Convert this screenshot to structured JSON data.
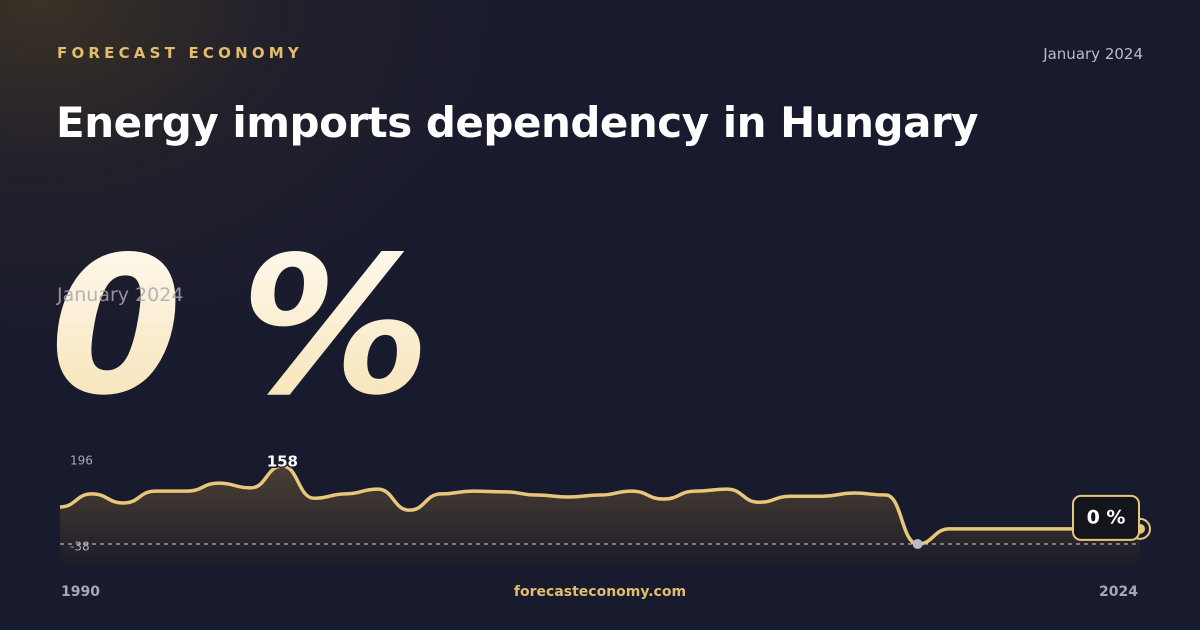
{
  "brand": "FORECAST ECONOMY",
  "date": "January 2024",
  "site": "forecasteconomy.com",
  "chart_data": {
    "type": "line",
    "title": "Energy imports dependency in Hungary",
    "x": [
      1990,
      1991,
      1992,
      1993,
      1994,
      1995,
      1996,
      1997,
      1998,
      1999,
      2000,
      2001,
      2002,
      2003,
      2004,
      2005,
      2006,
      2007,
      2008,
      2009,
      2010,
      2011,
      2012,
      2013,
      2014,
      2015,
      2016,
      2017,
      2018,
      2019,
      2020,
      2021,
      2022,
      2023,
      2024
    ],
    "values": [
      55,
      88,
      65,
      95,
      95,
      115,
      103,
      158,
      77,
      88,
      100,
      47,
      88,
      95,
      93,
      85,
      80,
      85,
      95,
      75,
      95,
      100,
      67,
      82,
      82,
      90,
      85,
      -38,
      0,
      0,
      0,
      0,
      0,
      0,
      0
    ],
    "value_labels": [
      null,
      null,
      null,
      null,
      null,
      null,
      null,
      null,
      null,
      null,
      null,
      null,
      null,
      null,
      null,
      null,
      null,
      null,
      null,
      null,
      null,
      null,
      null,
      null,
      null,
      null,
      null,
      null,
      null,
      null,
      null,
      null,
      null,
      null,
      "0 %"
    ],
    "color": "#e8c77a",
    "xlim": [
      1990,
      2024
    ],
    "xticks": [
      1990,
      2024
    ],
    "ylim": [
      -38,
      196
    ],
    "yticks": [
      196,
      -38
    ]
  }
}
